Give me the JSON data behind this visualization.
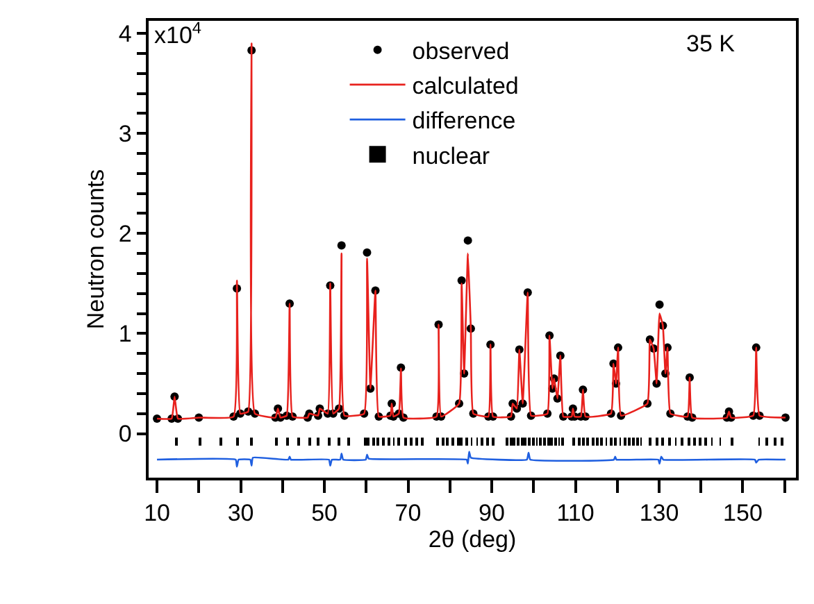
{
  "chart_data": {
    "type": "line",
    "xlabel": "2θ (deg)",
    "ylabel": "Neutron counts",
    "xlim": [
      8,
      162.7
    ],
    "ylim": [
      -0.44,
      4.125
    ],
    "xticks": [
      10,
      {
        "value": 20,
        "label": null
      },
      30,
      {
        "value": 40,
        "label": null
      },
      50,
      {
        "value": 60,
        "label": null
      },
      70,
      {
        "value": 80,
        "label": null
      },
      90,
      {
        "value": 100,
        "label": null
      },
      110,
      {
        "value": 120,
        "label": null
      },
      130,
      {
        "value": 140,
        "label": null
      },
      150,
      {
        "value": 160,
        "label": null
      }
    ],
    "yticks": [
      0,
      {
        "value": 0.2,
        "label": null
      },
      {
        "value": 0.4,
        "label": null
      },
      {
        "value": 0.6,
        "label": null
      },
      {
        "value": 0.8,
        "label": null
      },
      1,
      {
        "value": 1.2,
        "label": null
      },
      {
        "value": 1.4,
        "label": null
      },
      {
        "value": 1.6,
        "label": null
      },
      {
        "value": 1.8,
        "label": null
      },
      2,
      {
        "value": 2.2,
        "label": null
      },
      {
        "value": 2.4,
        "label": null
      },
      {
        "value": 2.6,
        "label": null
      },
      {
        "value": 2.8,
        "label": null
      },
      3,
      {
        "value": 3.2,
        "label": null
      },
      {
        "value": 3.4,
        "label": null
      },
      {
        "value": 3.6,
        "label": null
      },
      {
        "value": 3.8,
        "label": null
      },
      4
    ],
    "legend": "top",
    "annotations": [
      "35 K",
      "x10$^{4}$"
    ],
    "x": [
      10,
      13.5,
      14.2,
      15,
      20,
      28.3,
      29.1,
      29.9,
      31.8,
      32.6,
      33.4,
      38.3,
      38.9,
      39.5,
      41,
      41.7,
      42.4,
      46,
      46.4,
      48.5,
      48.9,
      50.8,
      51.4,
      52.1,
      53.5,
      54.1,
      54.8,
      59.5,
      60.2,
      61,
      62.2,
      63,
      65.8,
      66.1,
      66.5,
      67.8,
      68.3,
      68.9,
      76.8,
      77.3,
      77.9,
      82.2,
      82.8,
      83.4,
      84.3,
      85,
      85.6,
      89.2,
      89.7,
      90.3,
      94.6,
      95,
      96,
      96.6,
      97.4,
      98.6,
      99.4,
      103.3,
      103.8,
      104.5,
      104.9,
      105.7,
      106.4,
      107.1,
      109.1,
      109.4,
      109.8,
      111.3,
      111.8,
      112.4,
      118.5,
      119.1,
      119.7,
      120.2,
      120.9,
      127.2,
      127.8,
      128.7,
      129.4,
      130.1,
      130.9,
      131.5,
      132,
      132.7,
      136.8,
      137.3,
      137.9,
      146.2,
      146.7,
      147.2,
      152.5,
      153.2,
      154,
      160.2
    ],
    "series": [
      {
        "name": "observed",
        "type": "scatter",
        "marker": "circle",
        "color": "#000000",
        "values": [
          0.15,
          0.15,
          0.37,
          0.15,
          0.16,
          0.17,
          1.45,
          0.2,
          0.22,
          3.83,
          0.2,
          0.16,
          0.25,
          0.16,
          0.18,
          1.3,
          0.17,
          0.16,
          0.2,
          0.18,
          0.25,
          0.2,
          1.48,
          0.2,
          0.25,
          1.88,
          0.18,
          0.2,
          1.81,
          0.45,
          1.43,
          0.17,
          0.18,
          0.3,
          0.17,
          0.2,
          0.66,
          0.16,
          0.17,
          1.09,
          0.17,
          0.3,
          1.53,
          0.6,
          1.93,
          1.05,
          0.2,
          0.17,
          0.89,
          0.17,
          0.17,
          0.3,
          0.25,
          0.84,
          0.3,
          1.41,
          0.18,
          0.2,
          0.98,
          0.45,
          0.55,
          0.35,
          0.78,
          0.17,
          0.17,
          0.25,
          0.17,
          0.17,
          0.44,
          0.17,
          0.2,
          0.7,
          0.5,
          0.86,
          0.18,
          0.3,
          0.94,
          0.85,
          0.5,
          1.29,
          1.08,
          0.6,
          0.86,
          0.2,
          0.17,
          0.56,
          0.16,
          0.16,
          0.22,
          0.16,
          0.18,
          0.86,
          0.18,
          0.16
        ]
      },
      {
        "name": "calculated",
        "color": "#e8211d",
        "values": [
          0.15,
          0.15,
          0.37,
          0.15,
          0.16,
          0.17,
          1.53,
          0.2,
          0.22,
          3.9,
          0.2,
          0.16,
          0.25,
          0.16,
          0.18,
          1.3,
          0.17,
          0.16,
          0.2,
          0.18,
          0.25,
          0.2,
          1.5,
          0.2,
          0.25,
          1.8,
          0.18,
          0.2,
          1.75,
          0.45,
          1.43,
          0.17,
          0.18,
          0.3,
          0.17,
          0.2,
          0.65,
          0.16,
          0.17,
          1.09,
          0.17,
          0.3,
          1.5,
          0.6,
          1.8,
          1.05,
          0.2,
          0.17,
          0.89,
          0.17,
          0.17,
          0.3,
          0.25,
          0.84,
          0.3,
          1.41,
          0.18,
          0.2,
          0.98,
          0.45,
          0.55,
          0.35,
          0.78,
          0.17,
          0.17,
          0.25,
          0.17,
          0.17,
          0.44,
          0.17,
          0.2,
          0.7,
          0.5,
          0.86,
          0.18,
          0.3,
          0.94,
          0.85,
          0.5,
          1.2,
          1.08,
          0.6,
          0.86,
          0.2,
          0.17,
          0.56,
          0.16,
          0.16,
          0.22,
          0.16,
          0.18,
          0.86,
          0.18,
          0.16
        ]
      },
      {
        "name": "difference",
        "type": "line",
        "color": "#1f5fe0",
        "x": [
          10,
          28.8,
          29.1,
          29.5,
          32.3,
          32.6,
          32.9,
          41.4,
          41.7,
          42,
          51.1,
          51.4,
          51.8,
          53.8,
          54.1,
          54.5,
          59.9,
          60.2,
          60.6,
          84,
          84.3,
          84.6,
          85,
          98.4,
          98.8,
          99.2,
          119.2,
          119.5,
          119.8,
          129.8,
          130.1,
          130.5,
          131,
          152.9,
          153.2,
          153.8,
          160.2
        ],
        "values": [
          -0.26,
          -0.26,
          -0.33,
          -0.26,
          -0.26,
          -0.32,
          -0.24,
          -0.26,
          -0.23,
          -0.26,
          -0.26,
          -0.32,
          -0.26,
          -0.26,
          -0.2,
          -0.26,
          -0.26,
          -0.21,
          -0.25,
          -0.26,
          -0.3,
          -0.18,
          -0.24,
          -0.26,
          -0.19,
          -0.26,
          -0.26,
          -0.23,
          -0.26,
          -0.26,
          -0.3,
          -0.23,
          -0.26,
          -0.26,
          -0.29,
          -0.26,
          -0.26
        ]
      },
      {
        "name": "nuclear",
        "type": "bar",
        "color": "#000000",
        "x": [
          14.5,
          20.4,
          25.4,
          29.1,
          32.6,
          38.6,
          41.1,
          43.8,
          46.4,
          48.6,
          51.2,
          53.5,
          55.7,
          59.7,
          60.6,
          61.8,
          62.9,
          64.2,
          65.4,
          66.6,
          67.9,
          69.3,
          70.6,
          72,
          73.5,
          77,
          78.3,
          79.5,
          80.8,
          82,
          82.8,
          84,
          85.2,
          86.5,
          87.8,
          89,
          90.3,
          93.6,
          94.5,
          95.4,
          96.3,
          97.2,
          98.1,
          99,
          99.9,
          100.8,
          101.7,
          102.6,
          103.5,
          104.4,
          105.3,
          106.1,
          106.9,
          109.7,
          110.8,
          111.9,
          113,
          114.1,
          115.2,
          116.3,
          117.4,
          118.5,
          119.6,
          120.7,
          121.8,
          122.9,
          124,
          125,
          125.7,
          127.9,
          129.4,
          130.9,
          132.5,
          134,
          135.6,
          137,
          138.4,
          139.8,
          141.2,
          142.6,
          144.6,
          147.3,
          153.9,
          155.7,
          157.6,
          159.4
        ],
        "base": [
          -0.12,
          -0.12,
          -0.12,
          -0.12,
          -0.12,
          -0.12,
          -0.12,
          -0.12,
          -0.12,
          -0.12,
          -0.12,
          -0.12,
          -0.12,
          -0.12,
          -0.12,
          -0.12,
          -0.12,
          -0.12,
          -0.12,
          -0.12,
          -0.12,
          -0.12,
          -0.12,
          -0.12,
          -0.12,
          -0.12,
          -0.12,
          -0.12,
          -0.12,
          -0.12,
          -0.12,
          -0.12,
          -0.12,
          -0.12,
          -0.12,
          -0.12,
          -0.12,
          -0.12,
          -0.12,
          -0.12,
          -0.12,
          -0.12,
          -0.12,
          -0.12,
          -0.12,
          -0.12,
          -0.12,
          -0.12,
          -0.12,
          -0.12,
          -0.12,
          -0.12,
          -0.12,
          -0.12,
          -0.12,
          -0.12,
          -0.12,
          -0.12,
          -0.12,
          -0.12,
          -0.12,
          -0.12,
          -0.12,
          -0.12,
          -0.12,
          -0.12,
          -0.12,
          -0.12,
          -0.12,
          -0.12,
          -0.12,
          -0.12,
          -0.12,
          -0.12,
          -0.12,
          -0.12,
          -0.12,
          -0.12,
          -0.12,
          -0.12,
          -0.12,
          -0.12,
          -0.12,
          -0.12,
          -0.12,
          -0.12
        ],
        "values": [
          0.08,
          0.08,
          0.08,
          0.08,
          0.08,
          0.08,
          0.08,
          0.08,
          0.08,
          0.08,
          0.08,
          0.08,
          0.08,
          0.08,
          0.08,
          0.08,
          0.08,
          0.08,
          0.08,
          0.08,
          0.08,
          0.08,
          0.08,
          0.08,
          0.08,
          0.08,
          0.08,
          0.08,
          0.08,
          0.08,
          0.08,
          0.08,
          0.08,
          0.08,
          0.08,
          0.08,
          0.08,
          0.08,
          0.08,
          0.08,
          0.08,
          0.08,
          0.08,
          0.08,
          0.08,
          0.08,
          0.08,
          0.08,
          0.08,
          0.08,
          0.08,
          0.08,
          0.08,
          0.08,
          0.08,
          0.08,
          0.08,
          0.08,
          0.08,
          0.08,
          0.08,
          0.08,
          0.08,
          0.08,
          0.08,
          0.08,
          0.08,
          0.08,
          0.08,
          0.08,
          0.08,
          0.08,
          0.08,
          0.08,
          0.08,
          0.08,
          0.08,
          0.08,
          0.08,
          0.08,
          0.08,
          0.08,
          0.08,
          0.08,
          0.08,
          0.08
        ]
      }
    ]
  }
}
